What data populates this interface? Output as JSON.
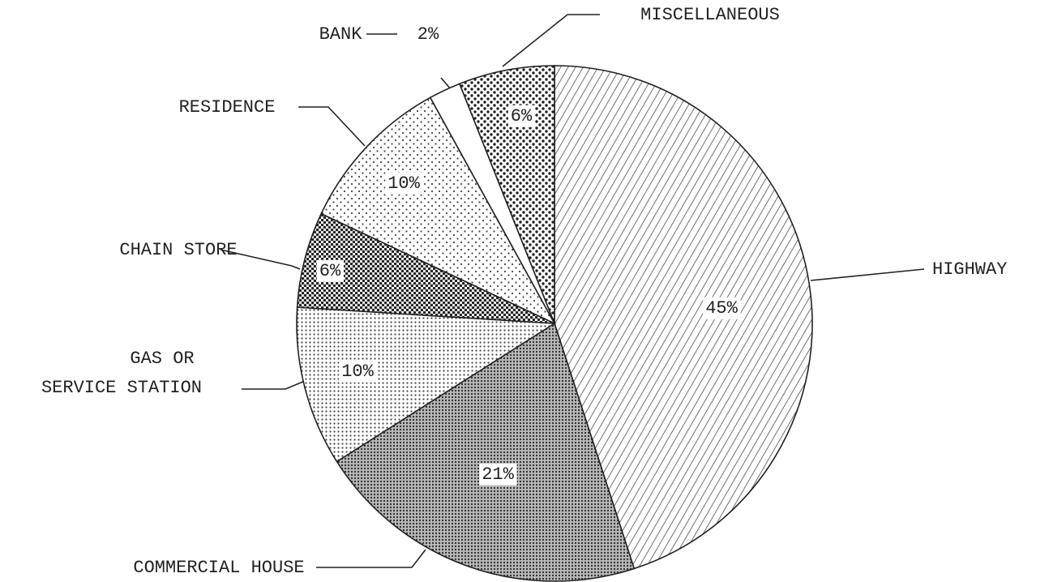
{
  "chart_data": {
    "type": "pie",
    "categories": [
      "HIGHWAY",
      "COMMERCIAL HOUSE",
      "GAS OR\nSERVICE STATION",
      "CHAIN STORE",
      "RESIDENCE",
      "BANK",
      "MISCELLANEOUS"
    ],
    "values": [
      45,
      21,
      10,
      6,
      10,
      2,
      6
    ],
    "value_labels": [
      "45%",
      "21%",
      "10%",
      "6%",
      "10%",
      "2%",
      "6%"
    ]
  }
}
